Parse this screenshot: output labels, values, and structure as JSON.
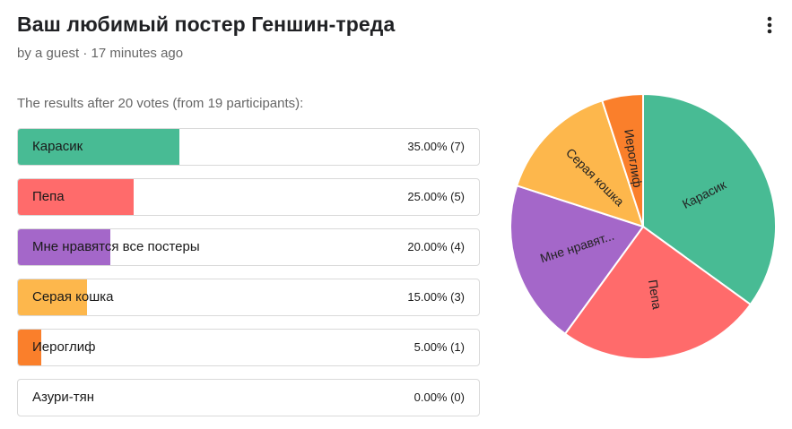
{
  "header": {
    "title": "Ваш любимый постер Геншин-треда",
    "byline": "by a guest · 17 minutes ago",
    "menu_icon": "kebab-menu-icon"
  },
  "results": {
    "summary": "The results after 20 votes (from 19 participants):"
  },
  "chart_data": {
    "type": "pie",
    "title": "Ваш любимый постер Геншин-треда",
    "slices": [
      {
        "label": "Карасик",
        "pie_label": "Карасик",
        "value": 7,
        "percent": 35.0,
        "display": "35.00% (7)",
        "color": "#48BB94"
      },
      {
        "label": "Пепа",
        "pie_label": "Пепа",
        "value": 5,
        "percent": 25.0,
        "display": "25.00% (5)",
        "color": "#FF6B6B"
      },
      {
        "label": "Мне нравятся все постеры",
        "pie_label": "Мне нравят...",
        "value": 4,
        "percent": 20.0,
        "display": "20.00% (4)",
        "color": "#A467C9"
      },
      {
        "label": "Серая кошка",
        "pie_label": "Серая кошка",
        "value": 3,
        "percent": 15.0,
        "display": "15.00% (3)",
        "color": "#FDB74C"
      },
      {
        "label": "Иероглиф",
        "pie_label": "Иероглиф",
        "value": 1,
        "percent": 5.0,
        "display": "5.00% (1)",
        "color": "#FA7F2B"
      },
      {
        "label": "Азури-тян",
        "pie_label": "",
        "value": 0,
        "percent": 0.0,
        "display": "0.00% (0)",
        "color": "#CCCCCC"
      }
    ]
  }
}
